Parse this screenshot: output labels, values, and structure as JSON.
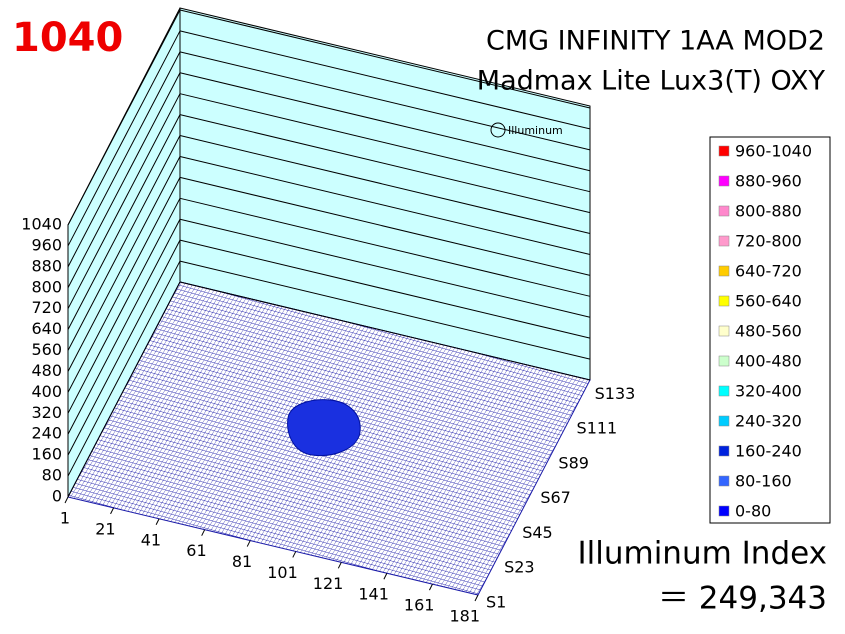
{
  "peak": 1040,
  "title_lines": [
    "CMG INFINITY 1AA MOD2",
    "Madmax Lite Lux3(T) OXY"
  ],
  "watermark": "Illuminum",
  "index_label": "Illuminum Index",
  "index_value": "＝ 249,343",
  "chart_data": {
    "type": "surface3d",
    "zlim": [
      0,
      1040
    ],
    "zticks": [
      0,
      80,
      160,
      240,
      320,
      400,
      480,
      560,
      640,
      720,
      800,
      880,
      960,
      1040
    ],
    "xlim": [
      1,
      181
    ],
    "xticks": [
      1,
      21,
      41,
      61,
      81,
      101,
      121,
      141,
      161,
      181
    ],
    "ycategories": [
      "S1",
      "S23",
      "S45",
      "S67",
      "S89",
      "S111",
      "S133"
    ],
    "legend": [
      {
        "label": "960-1040",
        "color": "#ff0000"
      },
      {
        "label": "880-960",
        "color": "#ff00ff"
      },
      {
        "label": "800-880",
        "color": "#ff88cc"
      },
      {
        "label": "720-800",
        "color": "#ff99cc"
      },
      {
        "label": "640-720",
        "color": "#ffcc00"
      },
      {
        "label": "560-640",
        "color": "#ffff00"
      },
      {
        "label": "480-560",
        "color": "#ffffcc"
      },
      {
        "label": "400-480",
        "color": "#ccffcc"
      },
      {
        "label": "320-400",
        "color": "#00ffff"
      },
      {
        "label": "240-320",
        "color": "#00ccff"
      },
      {
        "label": "160-240",
        "color": "#0022dd"
      },
      {
        "label": "80-160",
        "color": "#3366ff"
      },
      {
        "label": "0-80",
        "color": "#0000ff"
      }
    ]
  }
}
